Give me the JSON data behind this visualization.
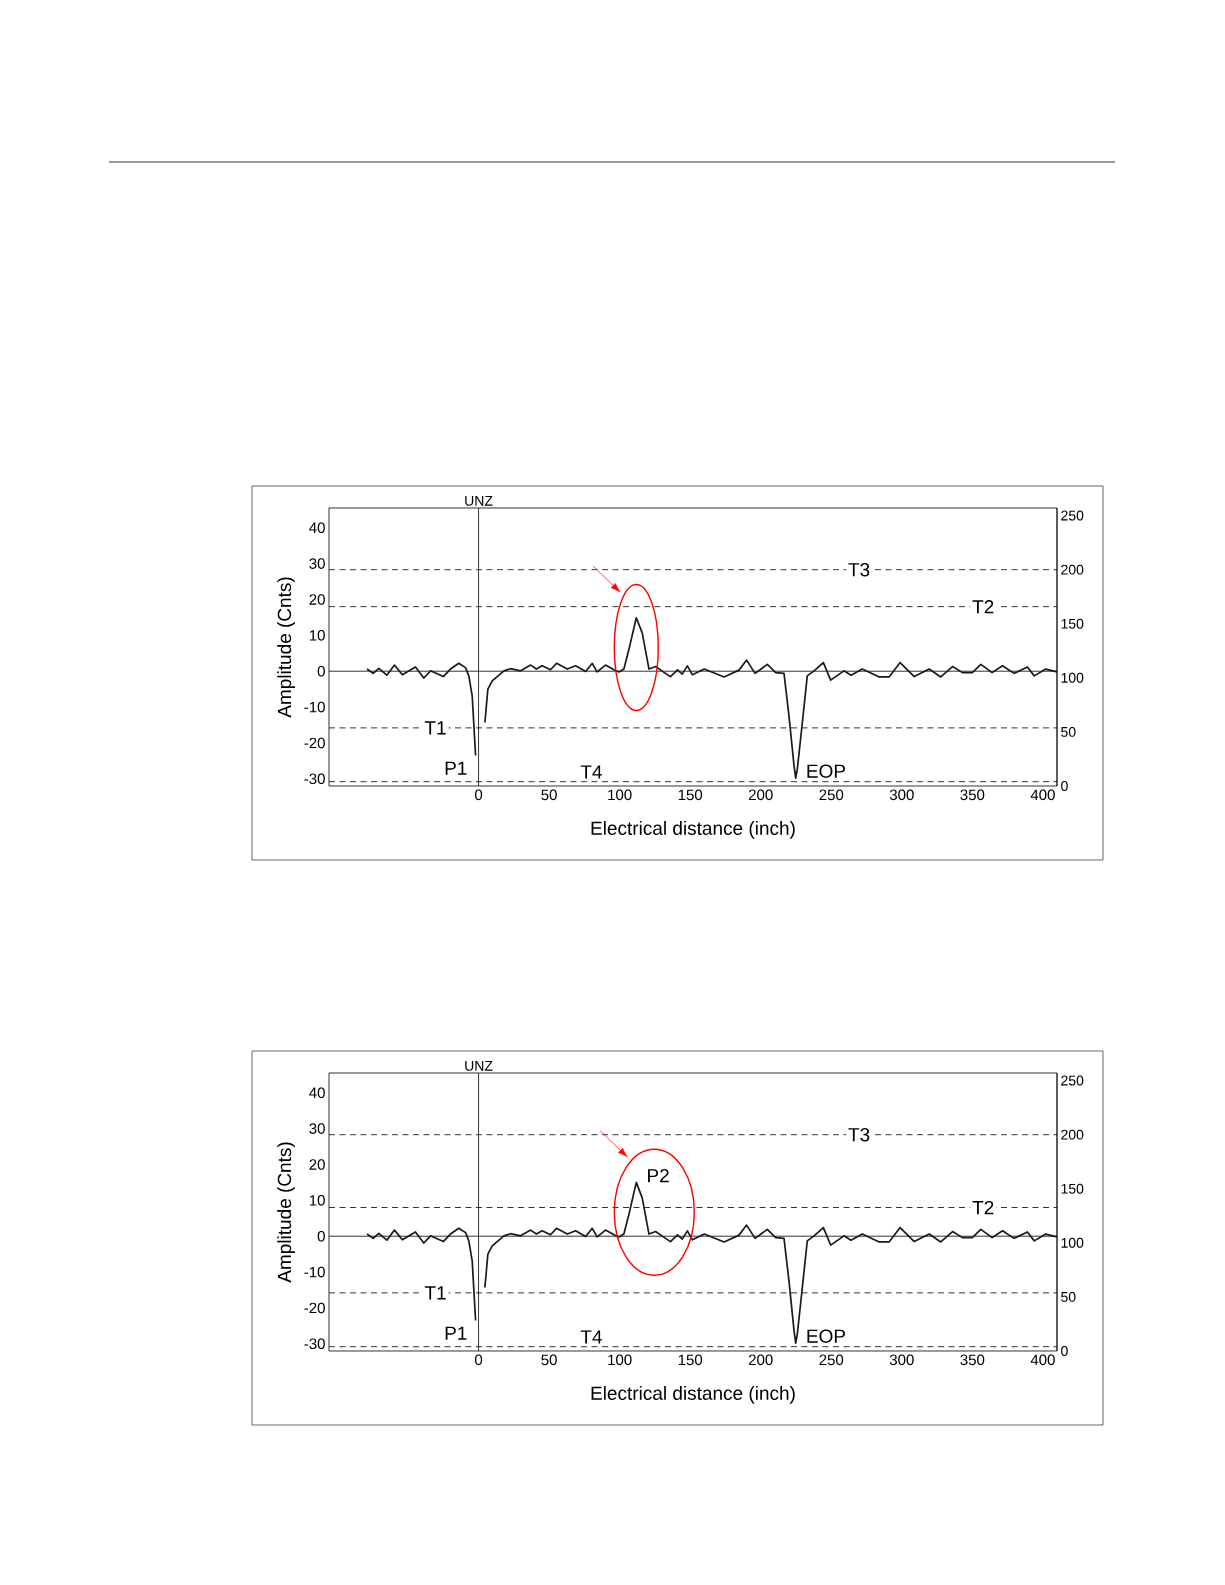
{
  "chart_data": [
    {
      "type": "line",
      "xlabel": "Electrical distance (inch)",
      "ylabel": "Amplitude (Cnts)",
      "x": [
        -79,
        -74.7,
        -70.7,
        -65,
        -59.6,
        -54,
        -44.7,
        -38.8,
        -34,
        -25,
        -19.9,
        -14,
        -9.2,
        -6.9,
        -4.5,
        -2.1,
        -0.2,
        2.6,
        4.5,
        6.6,
        9.7,
        18,
        22.7,
        29.8,
        36.9,
        41,
        45,
        51,
        55.3,
        62.9,
        68.8,
        75.9,
        80.6,
        84,
        90,
        96,
        99.5,
        103,
        106.6,
        111.8,
        116,
        120.8,
        125.5,
        131,
        136,
        141,
        144.4,
        148,
        151.6,
        160,
        174,
        184.6,
        190,
        196,
        204.7,
        210.6,
        216.5,
        220,
        223.6,
        224.8,
        226,
        229.5,
        233,
        237.8,
        244.4,
        249.6,
        259,
        264,
        272,
        284,
        291,
        298.8,
        308.8,
        319.4,
        327.6,
        336,
        343,
        350,
        356,
        364,
        371.4,
        379.6,
        389,
        393.9,
        402,
        410
      ],
      "series": [
        {
          "color": "#1a1a1a",
          "values": [
            0.6,
            -0.6,
            0.8,
            -1.1,
            1.7,
            -1,
            1.2,
            -1.9,
            0.1,
            -1.5,
            0.6,
            2.2,
            1,
            -1.3,
            -6.9,
            -23.5,
            null,
            null,
            -14.3,
            -5,
            -2.7,
            0.1,
            0.7,
            0.1,
            1.7,
            0.6,
            1.5,
            0.4,
            2.2,
            0.6,
            1.5,
            -0.1,
            2.2,
            -0.2,
            1.7,
            0.4,
            -0.2,
            0.6,
            6.1,
            14.9,
            10.7,
            0.6,
            1.3,
            -0.2,
            -1.5,
            0.4,
            -0.8,
            1.5,
            -1,
            0.6,
            -1.6,
            0.3,
            3.1,
            -0.6,
            1.9,
            -0.4,
            -0.6,
            -12.4,
            -26.3,
            -29.8,
            -27.1,
            -14.3,
            -1.3,
            0.1,
            2.4,
            -2.5,
            0.1,
            -1.1,
            0.6,
            -1.6,
            -1.6,
            2.4,
            -1.5,
            0.6,
            -1.6,
            1.3,
            -0.4,
            -0.4,
            1.9,
            -0.4,
            1.5,
            -0.6,
            1.2,
            -1.3,
            0.6,
            -0.2
          ]
        }
      ],
      "xlim": [
        -106,
        410
      ],
      "xticks": [
        0,
        50,
        100,
        150,
        200,
        250,
        300,
        350,
        400
      ],
      "ylim": [
        -32,
        45.5
      ],
      "yticks": [
        -30,
        -20,
        -10,
        0,
        10,
        20,
        30,
        40
      ],
      "y2lim": [
        0,
        257
      ],
      "y2ticks": [
        0,
        50,
        100,
        150,
        200,
        250
      ],
      "marker": "none",
      "line_style": "solid",
      "ref_lines": [
        {
          "axis": "x",
          "value": 0,
          "label": "UNZ",
          "line_style": "solid"
        },
        {
          "axis": "y",
          "value": 0,
          "line_style": "solid"
        },
        {
          "axis": "y",
          "value": 28.3,
          "line_style": "dashed"
        },
        {
          "axis": "y",
          "value": 18,
          "line_style": "dashed"
        },
        {
          "axis": "y",
          "value": -15.8,
          "line_style": "dashed"
        },
        {
          "axis": "y",
          "value": -30.8,
          "line_style": "dashed"
        }
      ],
      "annotations": [
        {
          "text": "T3",
          "x": 269.7,
          "y": 28.3
        },
        {
          "text": "T2",
          "x": 357.7,
          "y": 18
        },
        {
          "text": "T1",
          "x": -30.5,
          "y": -15.8
        },
        {
          "text": "T4",
          "x": 80,
          "y": -30.8
        },
        {
          "text": "P1",
          "x": -2.1,
          "y": -23.5
        },
        {
          "text": "EOP",
          "x": 224.8,
          "y": -29.8
        }
      ]
    },
    {
      "type": "line",
      "xlabel": "Electrical distance (inch)",
      "ylabel": "Amplitude (Cnts)",
      "x": [
        -79,
        -74.7,
        -70.7,
        -65,
        -59.6,
        -54,
        -44.7,
        -38.8,
        -34,
        -25,
        -19.9,
        -14,
        -9.2,
        -6.9,
        -4.5,
        -2.1,
        -0.2,
        2.6,
        4.5,
        6.6,
        9.7,
        18,
        22.7,
        29.8,
        36.9,
        41,
        45,
        51,
        55.3,
        62.9,
        68.8,
        75.9,
        80.6,
        84,
        90,
        96,
        99.5,
        103,
        106.6,
        111.8,
        116,
        120.8,
        125.5,
        131,
        136,
        141,
        144.4,
        148,
        151.6,
        160,
        174,
        184.6,
        190,
        196,
        204.7,
        210.6,
        216.5,
        220,
        223.6,
        224.8,
        226,
        229.5,
        233,
        237.8,
        244.4,
        249.6,
        259,
        264,
        272,
        284,
        291,
        298.8,
        308.8,
        319.4,
        327.6,
        336,
        343,
        350,
        356,
        364,
        371.4,
        379.6,
        389,
        393.9,
        402,
        410
      ],
      "series": [
        {
          "color": "#1a1a1a",
          "values": [
            0.6,
            -0.6,
            0.8,
            -1.1,
            1.7,
            -1,
            1.2,
            -1.9,
            0.1,
            -1.5,
            0.6,
            2.2,
            1,
            -1.3,
            -6.9,
            -23.5,
            null,
            null,
            -14.3,
            -5,
            -2.7,
            0.1,
            0.7,
            0.1,
            1.7,
            0.6,
            1.5,
            0.4,
            2.2,
            0.6,
            1.5,
            -0.1,
            2.2,
            -0.2,
            1.7,
            0.4,
            -0.2,
            0.6,
            6.1,
            15,
            10.7,
            0.6,
            1.3,
            -0.2,
            -1.5,
            0.4,
            -0.8,
            1.5,
            -1,
            0.6,
            -1.6,
            0.3,
            3.1,
            -0.6,
            1.9,
            -0.4,
            -0.6,
            -12.4,
            -26.3,
            -29.8,
            -27.1,
            -14.3,
            -1.3,
            0.1,
            2.4,
            -2.5,
            0.1,
            -1.1,
            0.6,
            -1.6,
            -1.6,
            2.4,
            -1.5,
            0.6,
            -1.6,
            1.3,
            -0.4,
            -0.4,
            1.9,
            -0.4,
            1.5,
            -0.6,
            1.2,
            -1.3,
            0.6,
            -0.2
          ]
        }
      ],
      "xlim": [
        -106,
        410
      ],
      "xticks": [
        0,
        50,
        100,
        150,
        200,
        250,
        300,
        350,
        400
      ],
      "ylim": [
        -32,
        45.5
      ],
      "yticks": [
        -30,
        -20,
        -10,
        0,
        10,
        20,
        30,
        40
      ],
      "y2lim": [
        0,
        257
      ],
      "y2ticks": [
        0,
        50,
        100,
        150,
        200,
        250
      ],
      "marker": "none",
      "line_style": "solid",
      "ref_lines": [
        {
          "axis": "x",
          "value": 0,
          "label": "UNZ",
          "line_style": "solid"
        },
        {
          "axis": "y",
          "value": 0,
          "line_style": "solid"
        },
        {
          "axis": "y",
          "value": 28.3,
          "line_style": "dashed"
        },
        {
          "axis": "y",
          "value": 8,
          "line_style": "dashed"
        },
        {
          "axis": "y",
          "value": -15.8,
          "line_style": "dashed"
        },
        {
          "axis": "y",
          "value": -30.8,
          "line_style": "dashed"
        }
      ],
      "annotations": [
        {
          "text": "T3",
          "x": 269.7,
          "y": 28.3
        },
        {
          "text": "T2",
          "x": 357.7,
          "y": 8
        },
        {
          "text": "T1",
          "x": -30.5,
          "y": -15.8
        },
        {
          "text": "T4",
          "x": 80,
          "y": -30.8
        },
        {
          "text": "P1",
          "x": -2.1,
          "y": -23.5
        },
        {
          "text": "P2",
          "x": 111.8,
          "y": 15
        },
        {
          "text": "EOP",
          "x": 224.8,
          "y": -29.8
        }
      ]
    }
  ]
}
